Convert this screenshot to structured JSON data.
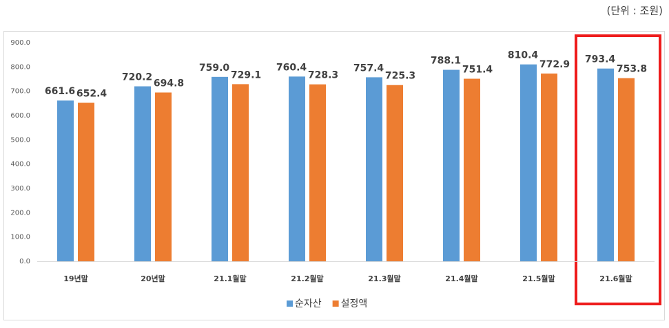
{
  "chart_data": {
    "type": "bar",
    "unit_note": "(단위 : 조원)",
    "categories": [
      "19년말",
      "20년말",
      "21.1월말",
      "21.2월말",
      "21.3월말",
      "21.4월말",
      "21.5월말",
      "21.6월말"
    ],
    "series": [
      {
        "name": "순자산",
        "color": "#5b9bd5",
        "values": [
          661.6,
          720.2,
          759.0,
          760.4,
          757.4,
          788.1,
          810.4,
          793.4
        ],
        "value_labels": [
          "661.6",
          "720.2",
          "759.0",
          "760.4",
          "757.4",
          "788.1",
          "810.4",
          "793.4"
        ]
      },
      {
        "name": "설정액",
        "color": "#ed7d31",
        "values": [
          652.4,
          694.8,
          729.1,
          728.3,
          725.3,
          751.4,
          772.9,
          753.8
        ],
        "value_labels": [
          "652.4",
          "694.8",
          "729.1",
          "728.3",
          "725.3",
          "751.4",
          "772.9",
          "753.8"
        ]
      }
    ],
    "ylim": [
      0,
      900
    ],
    "yticks": [
      {
        "value": 0,
        "label": "0.0"
      },
      {
        "value": 100,
        "label": "100.0"
      },
      {
        "value": 200,
        "label": "200.0"
      },
      {
        "value": 300,
        "label": "300.0"
      },
      {
        "value": 400,
        "label": "400.0"
      },
      {
        "value": 500,
        "label": "500.0"
      },
      {
        "value": 600,
        "label": "600.0"
      },
      {
        "value": 700,
        "label": "700.0"
      },
      {
        "value": 800,
        "label": "800.0"
      },
      {
        "value": 900,
        "label": "900.0"
      }
    ],
    "grid": false,
    "legend": "bottom"
  }
}
